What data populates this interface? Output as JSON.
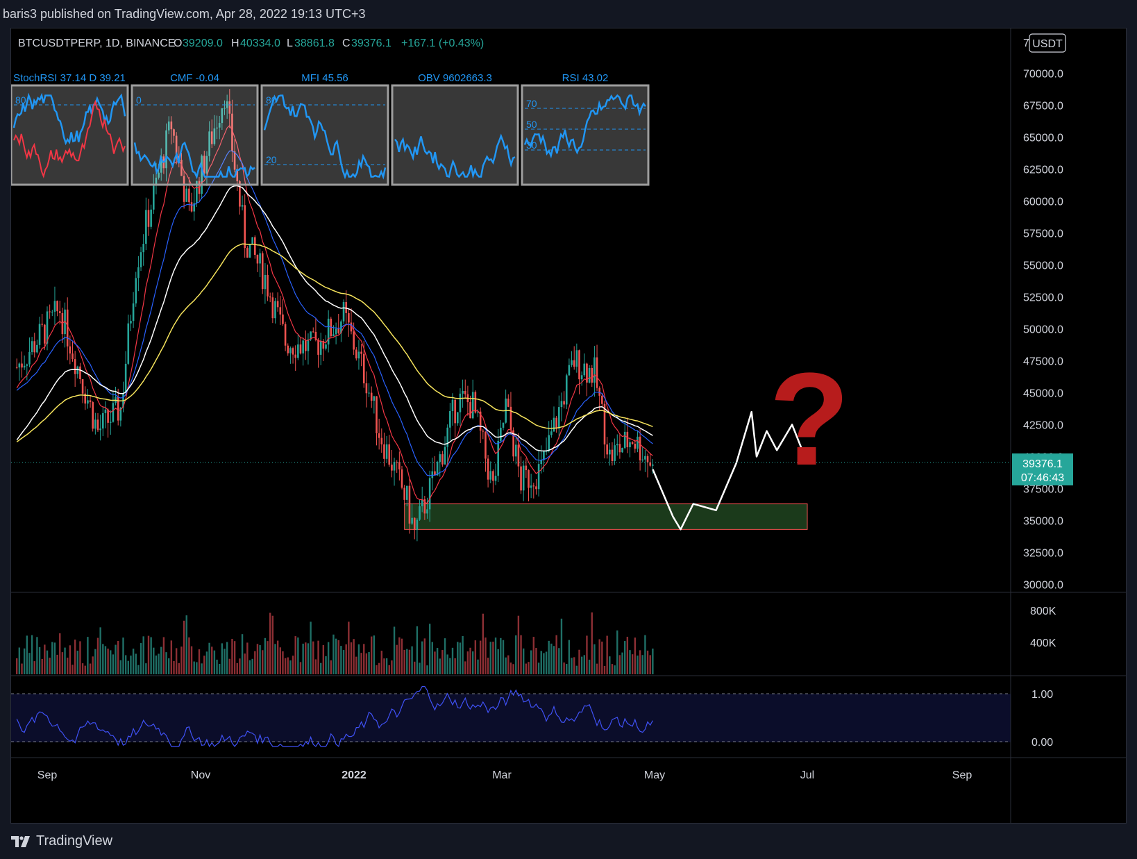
{
  "header": {
    "published_line": "baris3 published on TradingView.com, Apr 28, 2022 19:13 UTC+3"
  },
  "legend": {
    "symbol": "BTCUSDTPERP, 1D, BINANCE",
    "open_label": "O",
    "open_value": "39209.0",
    "high_label": "H",
    "high_value": "40334.0",
    "low_label": "L",
    "low_value": "38861.8",
    "close_label": "C",
    "close_value": "39376.1",
    "change": "+167.1 (+0.43%)"
  },
  "currency_badge": "USDT",
  "indicators": [
    {
      "label": "StochRSI 37.14 D 39.21",
      "levels": [
        "80"
      ]
    },
    {
      "label": "CMF -0.04",
      "levels": [
        "0"
      ]
    },
    {
      "label": "MFI 45.56",
      "levels": [
        "80",
        "20"
      ]
    },
    {
      "label": "OBV 9602663.3",
      "levels": []
    },
    {
      "label": "RSI 43.02",
      "levels": [
        "70",
        "50",
        "30"
      ]
    }
  ],
  "price_axis": [
    "70000.0",
    "67500.0",
    "65000.0",
    "62500.0",
    "60000.0",
    "57500.0",
    "55000.0",
    "52500.0",
    "50000.0",
    "47500.0",
    "45000.0",
    "42500.0",
    "40000.0",
    "37500.0",
    "35000.0",
    "32500.0",
    "30000.0"
  ],
  "price_axis_top_partial": "7",
  "last_price": {
    "price": "39376.1",
    "countdown": "07:46:43"
  },
  "volume_axis": [
    "800K",
    "400K"
  ],
  "osc_axis": [
    "1.00",
    "0.00"
  ],
  "time_axis": [
    {
      "label": "Sep",
      "bold": false
    },
    {
      "label": "Nov",
      "bold": false
    },
    {
      "label": "2022",
      "bold": true
    },
    {
      "label": "Mar",
      "bold": false
    },
    {
      "label": "May",
      "bold": false
    },
    {
      "label": "Jul",
      "bold": false
    },
    {
      "label": "Sep",
      "bold": false
    }
  ],
  "annotation": {
    "question_mark": "?"
  },
  "footer": {
    "brand": "TradingView"
  },
  "colors": {
    "up": "#26a69a",
    "down": "#ef5350",
    "ema_fast": "#f23645",
    "ema_mid": "#2962ff",
    "ema_white": "#ffffff",
    "ema_yellow": "#f5e35c",
    "indicator_blue": "#2196f3",
    "question_red": "#b71c1c",
    "support_zone": "#1b3a1b",
    "last_price_badge": "#26a69a"
  },
  "chart_data": {
    "type": "candlestick",
    "symbol": "BTCUSDTPERP",
    "interval": "1D",
    "exchange": "BINANCE",
    "ylim": [
      30000,
      72500
    ],
    "x_range": [
      "2021-08",
      "2022-10"
    ],
    "series": [
      {
        "type": "candlestick",
        "approx_close_path": [
          [
            "2021-08-20",
            47000
          ],
          [
            "2021-09-06",
            51500
          ],
          [
            "2021-09-21",
            42000
          ],
          [
            "2021-09-30",
            43800
          ],
          [
            "2021-10-06",
            55000
          ],
          [
            "2021-10-20",
            66000
          ],
          [
            "2021-10-27",
            59000
          ],
          [
            "2021-11-10",
            68500
          ],
          [
            "2021-11-18",
            57000
          ],
          [
            "2021-11-26",
            54000
          ],
          [
            "2021-12-04",
            49000
          ],
          [
            "2021-12-15",
            48500
          ],
          [
            "2021-12-27",
            51000
          ],
          [
            "2022-01-05",
            46000
          ],
          [
            "2022-01-10",
            42000
          ],
          [
            "2022-01-21",
            36500
          ],
          [
            "2022-01-24",
            34000
          ],
          [
            "2022-02-01",
            38500
          ],
          [
            "2022-02-10",
            44500
          ],
          [
            "2022-02-16",
            44000
          ],
          [
            "2022-02-24",
            37500
          ],
          [
            "2022-03-01",
            44000
          ],
          [
            "2022-03-07",
            38000
          ],
          [
            "2022-03-15",
            39000
          ],
          [
            "2022-03-28",
            47500
          ],
          [
            "2022-04-05",
            46500
          ],
          [
            "2022-04-11",
            40000
          ],
          [
            "2022-04-20",
            41500
          ],
          [
            "2022-04-28",
            39376.1
          ]
        ]
      },
      {
        "type": "ema",
        "name": "",
        "color": "#f23645"
      },
      {
        "type": "ema",
        "name": "",
        "color": "#2962ff"
      },
      {
        "type": "ema",
        "name": "",
        "color": "#ffffff"
      },
      {
        "type": "ema",
        "name": "",
        "color": "#f5e35c"
      }
    ],
    "support_zone": {
      "y_low": 34300,
      "y_high": 36300,
      "x_start": "2022-01-20",
      "x_end": "2022-06-28"
    },
    "projection_path": [
      [
        "2022-04-28",
        39000
      ],
      [
        "2022-05-06",
        35300
      ],
      [
        "2022-05-09",
        34300
      ],
      [
        "2022-05-14",
        36300
      ],
      [
        "2022-05-23",
        35800
      ],
      [
        "2022-05-31",
        39500
      ],
      [
        "2022-06-06",
        43500
      ],
      [
        "2022-06-08",
        40000
      ],
      [
        "2022-06-12",
        42000
      ],
      [
        "2022-06-16",
        40500
      ],
      [
        "2022-06-22",
        42500
      ],
      [
        "2022-06-28",
        39500
      ]
    ],
    "volume_axis": [
      "400K",
      "800K"
    ],
    "oscillator_axis": [
      0.0,
      1.0
    ]
  }
}
